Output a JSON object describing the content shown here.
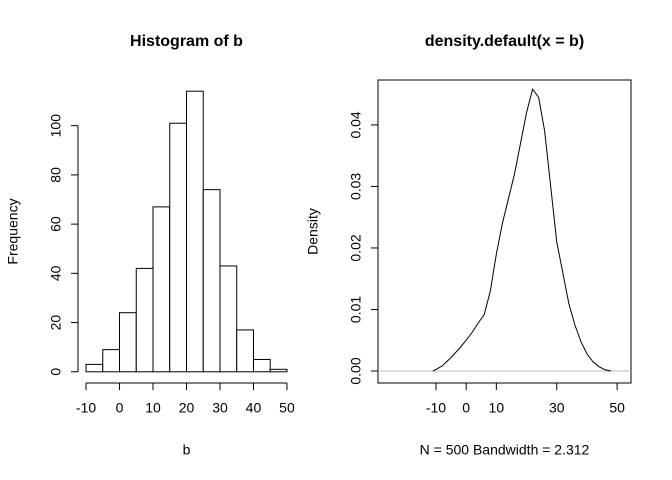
{
  "chart_data": [
    {
      "type": "histogram",
      "title": "Histogram of b",
      "x_label": "b",
      "y_label": "Frequency",
      "bins": [
        -10,
        -5,
        0,
        5,
        10,
        15,
        20,
        25,
        30,
        35,
        40,
        45,
        50
      ],
      "values": [
        3,
        9,
        24,
        42,
        67,
        101,
        114,
        74,
        43,
        17,
        5,
        1
      ],
      "color": "#ffffff",
      "edge_color": "#000000",
      "xlim": [
        -12.4,
        52.4
      ],
      "ylim": [
        -4.56,
        118.56
      ],
      "xticks": [
        -10,
        0,
        10,
        20,
        30,
        40,
        50
      ],
      "yticks": [
        0,
        20,
        40,
        60,
        80,
        100
      ]
    },
    {
      "type": "line",
      "title": "density.default(x = b)",
      "x_label": "N = 500   Bandwidth = 2.312",
      "y_label": "Density",
      "x": [
        -11,
        -8,
        -5,
        -2,
        0,
        2,
        4,
        6,
        8,
        10,
        12,
        14,
        16,
        18,
        20,
        22,
        24,
        26,
        28,
        30,
        32,
        34,
        36,
        38,
        40,
        42,
        44,
        46,
        48
      ],
      "series": [
        {
          "color": "#000000",
          "values": [
            0,
            0.0008,
            0.0022,
            0.0038,
            0.005,
            0.0063,
            0.0078,
            0.0092,
            0.013,
            0.019,
            0.024,
            0.028,
            0.032,
            0.037,
            0.042,
            0.0458,
            0.0445,
            0.039,
            0.03,
            0.021,
            0.016,
            0.011,
            0.0075,
            0.0048,
            0.0028,
            0.0015,
            0.0007,
            0.0002,
            0
          ]
        }
      ],
      "zero_line_color": "#bebebe",
      "xlim": [
        -29.2,
        54.6
      ],
      "ylim": [
        -0.00195,
        0.0473
      ],
      "xticks": [
        -10,
        0,
        10,
        30,
        50
      ],
      "yticks": [
        {
          "value": 0,
          "label": "0.00"
        },
        0.01,
        0.02,
        0.03,
        0.04
      ],
      "box": true
    }
  ]
}
